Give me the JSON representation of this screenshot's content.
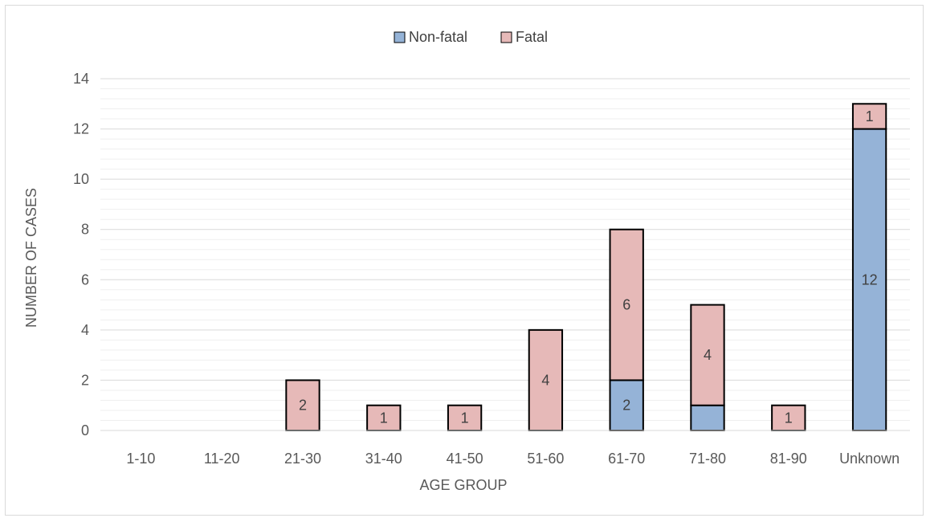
{
  "chart_data": {
    "type": "bar",
    "stacked": true,
    "title": "",
    "xlabel": "AGE GROUP",
    "ylabel": "NUMBER OF CASES",
    "categories": [
      "1-10",
      "11-20",
      "21-30",
      "31-40",
      "41-50",
      "51-60",
      "61-70",
      "71-80",
      "81-90",
      "Unknown"
    ],
    "series": [
      {
        "name": "Non-fatal",
        "color": "#95b3d7",
        "values": [
          0,
          0,
          0,
          0,
          0,
          0,
          2,
          1,
          0,
          12
        ],
        "labels": [
          "",
          "",
          "",
          "",
          "",
          "",
          "2",
          "",
          "",
          "12"
        ]
      },
      {
        "name": "Fatal",
        "color": "#e6b9b8",
        "values": [
          0,
          0,
          2,
          1,
          1,
          4,
          6,
          4,
          1,
          1
        ],
        "labels": [
          "",
          "",
          "2",
          "1",
          "1",
          "4",
          "6",
          "4",
          "1",
          "1"
        ]
      }
    ],
    "ylim": [
      0,
      14
    ],
    "yticks": [
      "0",
      "2",
      "4",
      "6",
      "8",
      "10",
      "12",
      "14"
    ],
    "grid": true,
    "legend": "top"
  }
}
